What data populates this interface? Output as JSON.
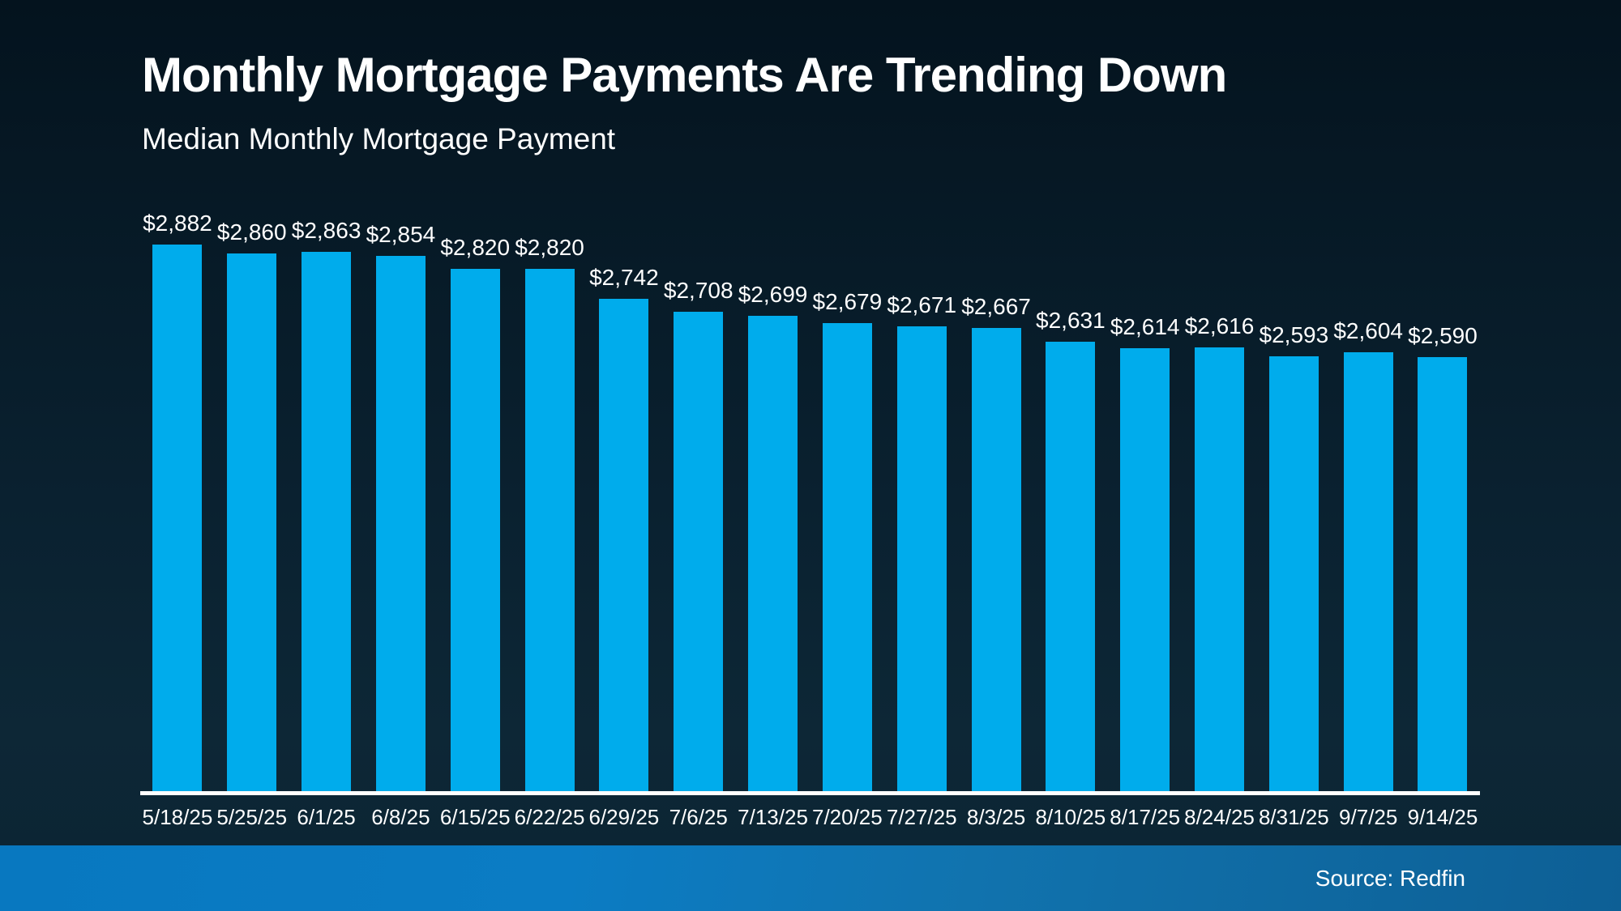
{
  "header": {
    "title": "Monthly Mortgage Payments Are Trending Down",
    "subtitle": "Median Monthly Mortgage Payment"
  },
  "footer": {
    "source_label": "Source: Redfin"
  },
  "colors": {
    "background_top": "#04131e",
    "background_bottom": "#0c2433",
    "bar": "#00acec",
    "axis": "#ffffff",
    "text": "#ffffff",
    "footer_strip_left": "#0878c0",
    "footer_strip_right": "#0d5f95"
  },
  "chart_data": {
    "type": "bar",
    "title": "Monthly Mortgage Payments Are Trending Down",
    "subtitle": "Median Monthly Mortgage Payment",
    "xlabel": "",
    "ylabel": "",
    "grid": false,
    "legend": false,
    "bar_color": "#00acec",
    "baseline_value": 1464,
    "categories": [
      "5/18/25",
      "5/25/25",
      "6/1/25",
      "6/8/25",
      "6/15/25",
      "6/22/25",
      "6/29/25",
      "7/6/25",
      "7/13/25",
      "7/20/25",
      "7/27/25",
      "8/3/25",
      "8/10/25",
      "8/17/25",
      "8/24/25",
      "8/31/25",
      "9/7/25",
      "9/14/25"
    ],
    "values": [
      2882,
      2860,
      2863,
      2854,
      2820,
      2820,
      2742,
      2708,
      2699,
      2679,
      2671,
      2667,
      2631,
      2614,
      2616,
      2593,
      2604,
      2590
    ],
    "value_labels": [
      "$2,882",
      "$2,860",
      "$2,863",
      "$2,854",
      "$2,820",
      "$2,820",
      "$2,742",
      "$2,708",
      "$2,699",
      "$2,679",
      "$2,671",
      "$2,667",
      "$2,631",
      "$2,614",
      "$2,616",
      "$2,593",
      "$2,604",
      "$2,590"
    ]
  }
}
